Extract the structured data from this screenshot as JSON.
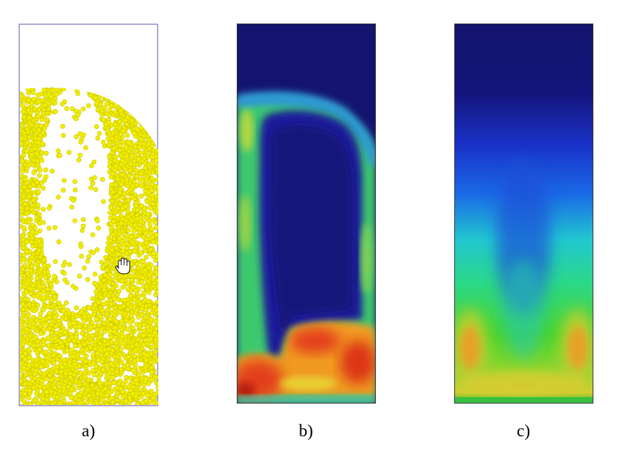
{
  "panels": [
    {
      "id": "a",
      "caption": "a)"
    },
    {
      "id": "b",
      "caption": "b)"
    },
    {
      "id": "c",
      "caption": "c)"
    }
  ],
  "colors": {
    "particle": "#f2ee00",
    "particle_edge": "#c8c400",
    "frame": "#5555aa",
    "field_low": "#14146e",
    "field_mid": "#2ad6a0",
    "field_high": "#d82a10"
  },
  "icons": {
    "cursor": "hand-cursor-icon"
  }
}
